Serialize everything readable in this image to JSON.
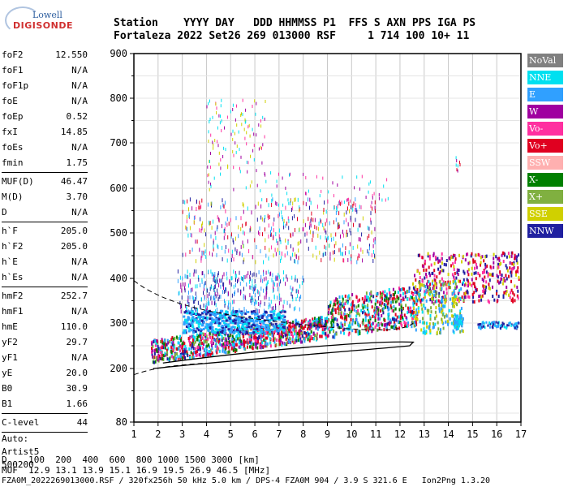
{
  "logo": {
    "line1": "Lowell",
    "line2": "DIGISONDE"
  },
  "header": {
    "row1": "Station    YYYY DAY   DDD HHMMSS P1  FFS S AXN PPS IGA PS",
    "row2": "Fortaleza 2022 Set26 269 013000 RSF     1 714 100 10+ 11"
  },
  "params": [
    {
      "label": "foF2",
      "value": "12.550"
    },
    {
      "label": "foF1",
      "value": "N/A"
    },
    {
      "label": "foF1p",
      "value": "N/A"
    },
    {
      "label": "foE",
      "value": "N/A"
    },
    {
      "label": "foEp",
      "value": "0.52"
    },
    {
      "label": "fxI",
      "value": "14.85"
    },
    {
      "label": "foEs",
      "value": "N/A"
    },
    {
      "label": "fmin",
      "value": "1.75"
    },
    {
      "sep": true
    },
    {
      "label": "MUF(D)",
      "value": "46.47"
    },
    {
      "label": "M(D)",
      "value": "3.70"
    },
    {
      "label": "D",
      "value": "N/A"
    },
    {
      "sep": true
    },
    {
      "label": "h`F",
      "value": "205.0"
    },
    {
      "label": "h`F2",
      "value": "205.0"
    },
    {
      "label": "h`E",
      "value": "N/A"
    },
    {
      "label": "h`Es",
      "value": "N/A"
    },
    {
      "sep": true
    },
    {
      "label": "hmF2",
      "value": "252.7"
    },
    {
      "label": "hmF1",
      "value": "N/A"
    },
    {
      "label": "hmE",
      "value": "110.0"
    },
    {
      "label": "yF2",
      "value": "29.7"
    },
    {
      "label": "yF1",
      "value": "N/A"
    },
    {
      "label": "yE",
      "value": "20.0"
    },
    {
      "label": "B0",
      "value": "30.9"
    },
    {
      "label": "B1",
      "value": "1.66"
    },
    {
      "sep": true
    },
    {
      "label": "C-level",
      "value": "44"
    },
    {
      "sep": true
    },
    {
      "text": "Auto:"
    },
    {
      "text": "Artist5"
    },
    {
      "text": "500200"
    }
  ],
  "legend": [
    {
      "label": "NoVal",
      "color": "#808080"
    },
    {
      "label": "NNE",
      "color": "#00e0f0"
    },
    {
      "label": "E",
      "color": "#30a0ff"
    },
    {
      "label": "W",
      "color": "#a000a0"
    },
    {
      "label": "Vo-",
      "color": "#ff30a0"
    },
    {
      "label": "Vo+",
      "color": "#e00020"
    },
    {
      "label": "SSW",
      "color": "#ffb0b0"
    },
    {
      "label": "X-",
      "color": "#008000"
    },
    {
      "label": "X+",
      "color": "#80b040"
    },
    {
      "label": "SSE",
      "color": "#d0d000"
    },
    {
      "label": "NNW",
      "color": "#2020a0"
    }
  ],
  "axes": {
    "x_ticks": [
      "1",
      "2",
      "3",
      "4",
      "5",
      "6",
      "7",
      "8",
      "9",
      "10",
      "11",
      "12",
      "13",
      "14",
      "15",
      "16",
      "17"
    ],
    "y_ticks": [
      "80",
      "200",
      "300",
      "400",
      "500",
      "600",
      "700",
      "800",
      "900"
    ]
  },
  "footer": {
    "line1": "D    100  200  400  600  800 1000 1500 3000 [km]",
    "line2": "MUF  12.9 13.1 13.9 15.1 16.9 19.5 26.9 46.5 [MHz]",
    "line3": "FZA0M_2022269013000.RSF / 320fx256h 50 kHz 5.0 km / DPS-4 FZA0M 904 / 3.9 S 321.6 E   Ion2Png 1.3.20"
  },
  "chart_data": {
    "type": "scatter",
    "title": "",
    "xlabel": "",
    "ylabel": "",
    "xlim": [
      1,
      17
    ],
    "ylim": [
      80,
      900
    ],
    "y_scale": "log-like (ionogram virtual height)",
    "grid": true,
    "legend_position": "right",
    "x_ticks": [
      1,
      2,
      3,
      4,
      5,
      6,
      7,
      8,
      9,
      10,
      11,
      12,
      13,
      14,
      15,
      16,
      17
    ],
    "y_ticks": [
      80,
      200,
      300,
      400,
      500,
      600,
      700,
      800,
      900
    ],
    "description_series": [
      {
        "name": "Vo+",
        "x_range": [
          1.7,
          17
        ],
        "y_range": [
          210,
          460
        ]
      },
      {
        "name": "E",
        "x_range": [
          3,
          7
        ],
        "y_range": [
          280,
          360
        ]
      },
      {
        "name": "NNW",
        "x_range": [
          2,
          16.8
        ],
        "y_range": [
          230,
          450
        ]
      },
      {
        "name": "X+",
        "x_range": [
          2.2,
          13
        ],
        "y_range": [
          220,
          330
        ]
      }
    ]
  }
}
